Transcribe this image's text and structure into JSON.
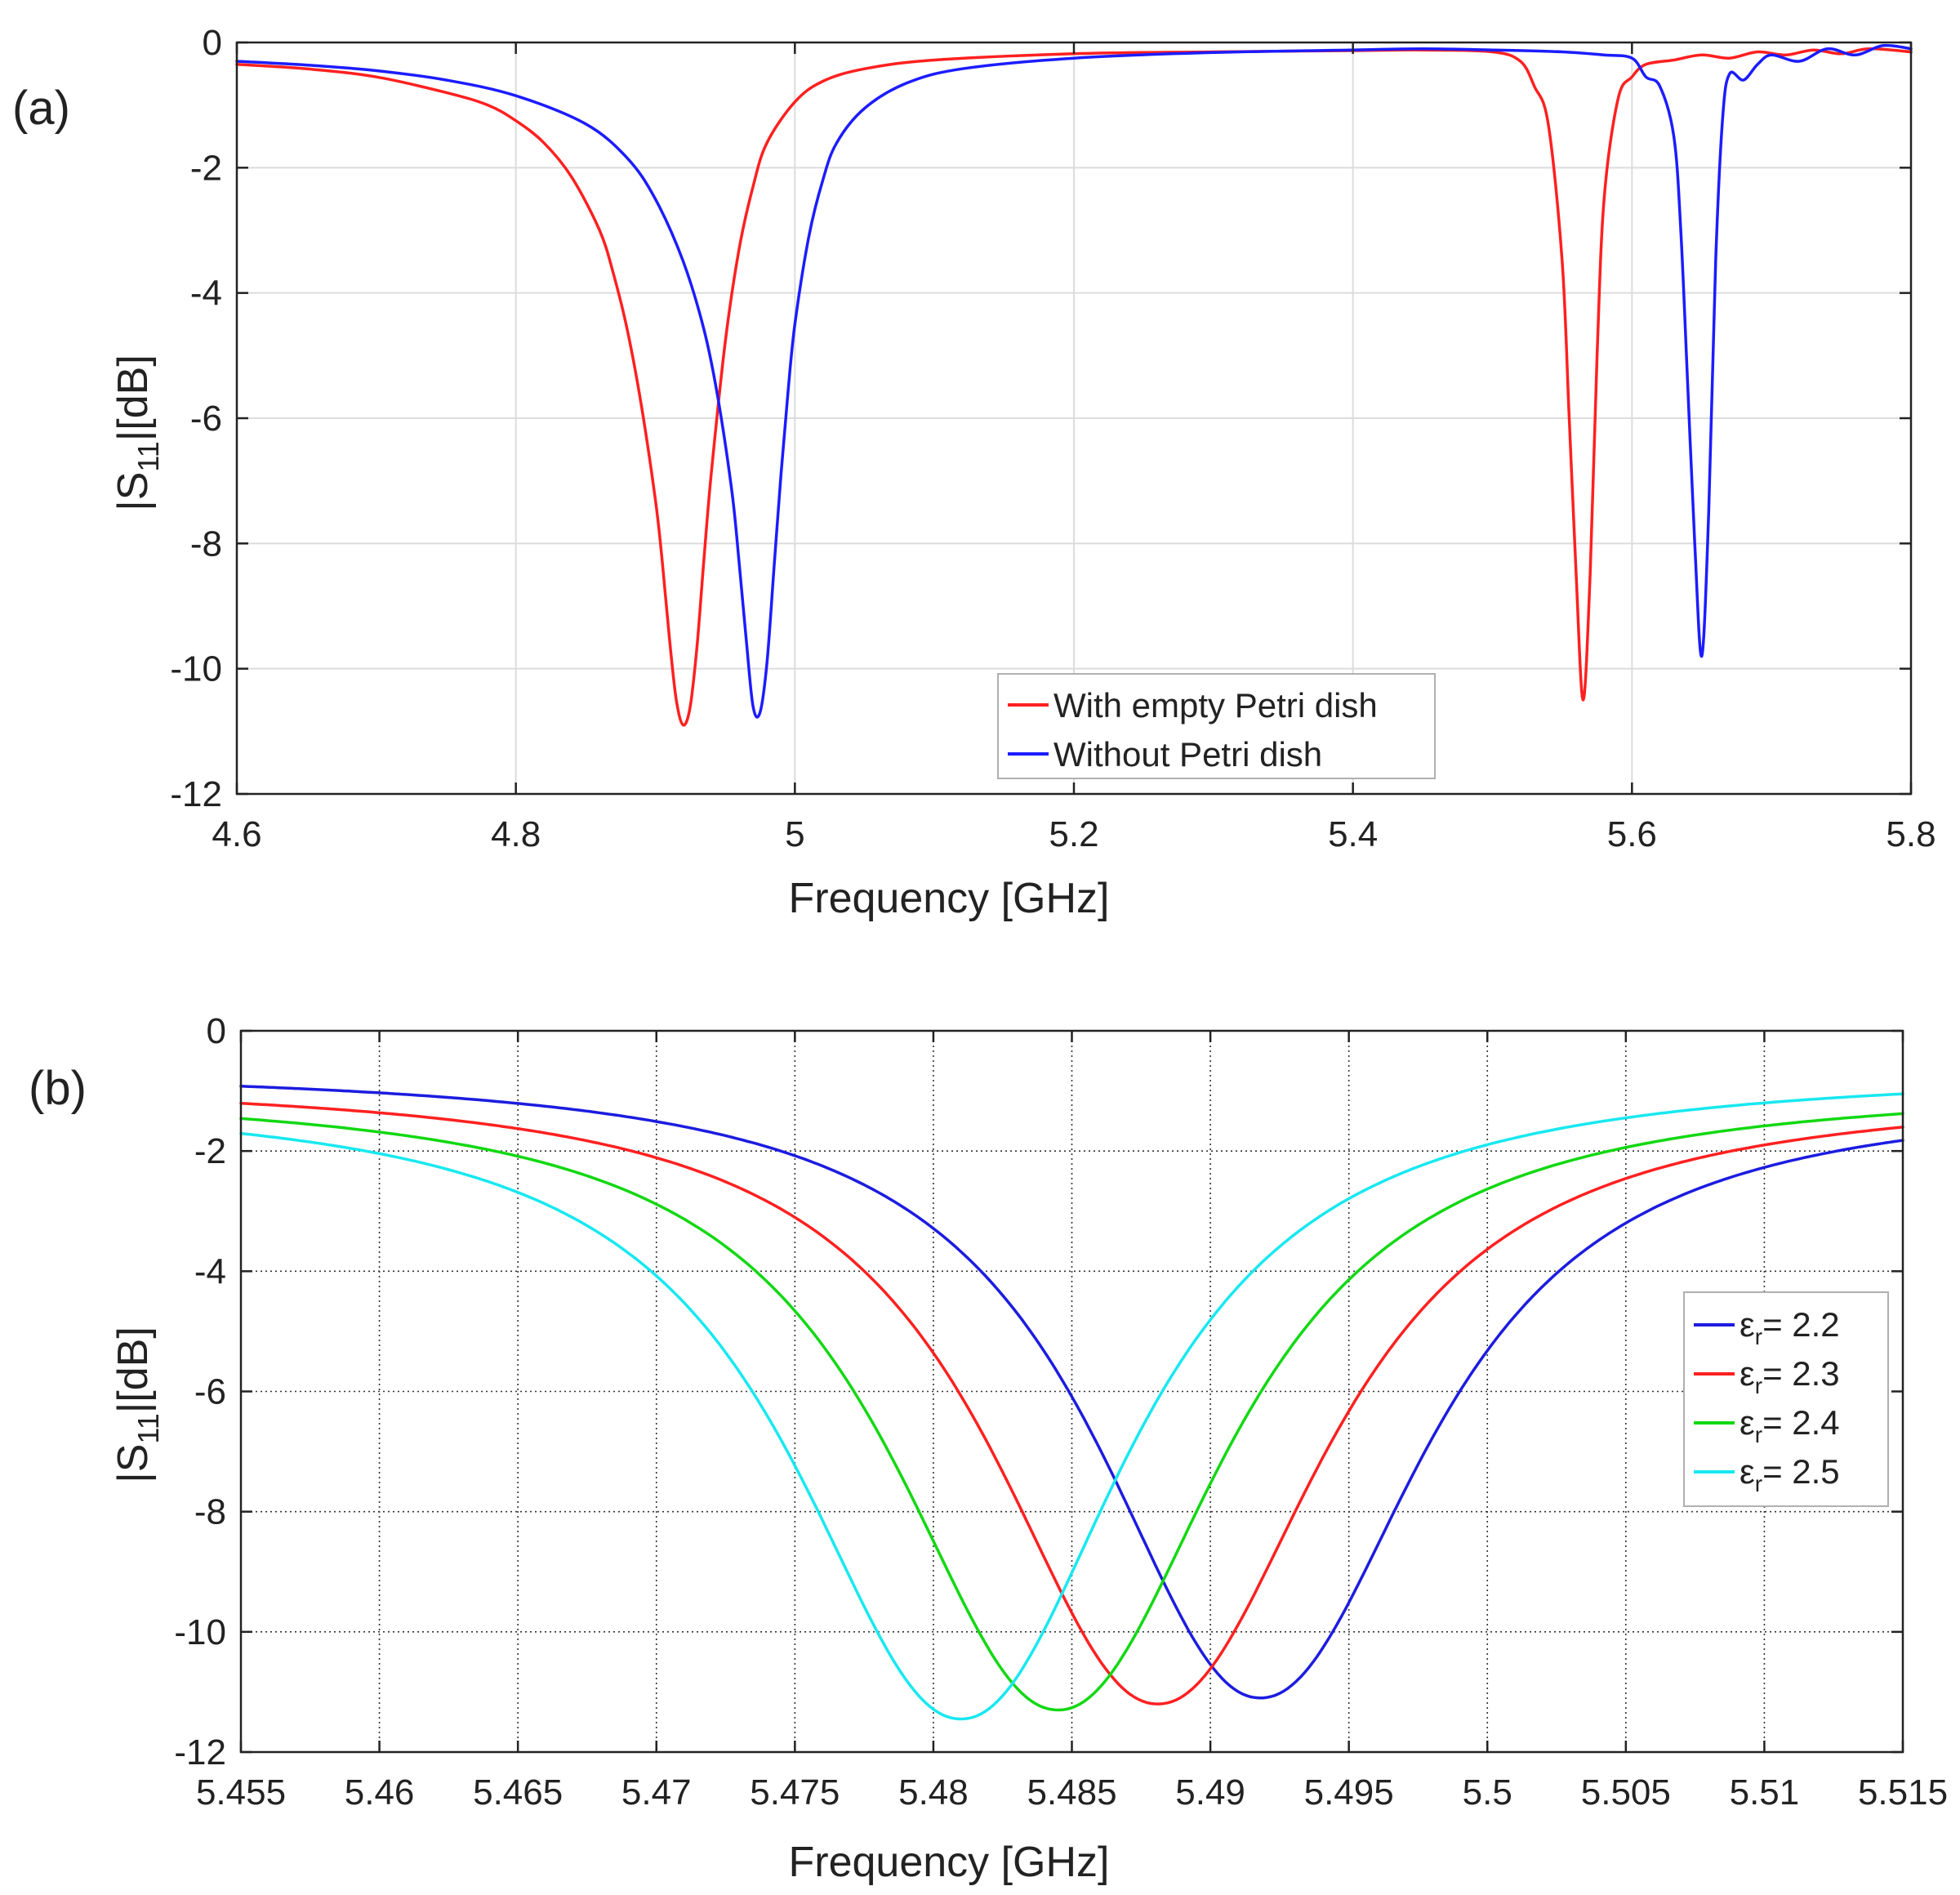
{
  "charts": [
    {
      "id": "a",
      "panel_label": "(a)",
      "ylabel_prefix": "|S",
      "ylabel_sub": "11",
      "ylabel_suffix": "|[dB]",
      "xlabel": "Frequency [GHz]"
    },
    {
      "id": "b",
      "panel_label": "(b)",
      "ylabel_prefix": "|S",
      "ylabel_sub": "11",
      "ylabel_suffix": "|[dB]",
      "xlabel": "Frequency [GHz]"
    }
  ],
  "chart_data": [
    {
      "type": "line",
      "title": "",
      "panel_label": "(a)",
      "xlabel": "Frequency [GHz]",
      "ylabel": "|S11|[dB]",
      "xlim": [
        4.6,
        5.8
      ],
      "ylim": [
        -12,
        0
      ],
      "xticks": [
        4.6,
        4.8,
        5,
        5.2,
        5.4,
        5.6,
        5.8
      ],
      "xtick_labels": [
        "4.6",
        "4.8",
        "5",
        "5.2",
        "5.4",
        "5.6",
        "5.8"
      ],
      "yticks": [
        0,
        -2,
        -4,
        -6,
        -8,
        -10,
        -12
      ],
      "ytick_labels": [
        "0",
        "-2",
        "-4",
        "-6",
        "-8",
        "-10",
        "-12"
      ],
      "grid": true,
      "legend_position": "bottom-center",
      "series": [
        {
          "name": "With empty Petri dish",
          "color": "#ff2020",
          "x": [
            4.6,
            4.65,
            4.7,
            4.75,
            4.78,
            4.8,
            4.82,
            4.84,
            4.86,
            4.87,
            4.88,
            4.89,
            4.9,
            4.905,
            4.91,
            4.915,
            4.92,
            4.925,
            4.93,
            4.935,
            4.94,
            4.95,
            4.96,
            4.97,
            4.98,
            5.0,
            5.02,
            5.05,
            5.1,
            5.2,
            5.3,
            5.4,
            5.45,
            5.5,
            5.52,
            5.53,
            5.54,
            5.55,
            5.555,
            5.56,
            5.565,
            5.57,
            5.575,
            5.58,
            5.59,
            5.6,
            5.61,
            5.63,
            5.65,
            5.67,
            5.69,
            5.71,
            5.73,
            5.75,
            5.77,
            5.8
          ],
          "y": [
            -0.35,
            -0.42,
            -0.55,
            -0.8,
            -1.0,
            -1.25,
            -1.6,
            -2.15,
            -3.0,
            -3.7,
            -4.6,
            -5.8,
            -7.3,
            -8.3,
            -9.5,
            -10.5,
            -10.9,
            -10.6,
            -9.6,
            -8.2,
            -6.9,
            -4.8,
            -3.3,
            -2.3,
            -1.6,
            -0.95,
            -0.62,
            -0.42,
            -0.28,
            -0.18,
            -0.15,
            -0.13,
            -0.12,
            -0.15,
            -0.3,
            -0.7,
            -1.3,
            -3.5,
            -6.0,
            -8.5,
            -10.5,
            -8.5,
            -5.0,
            -2.5,
            -0.9,
            -0.55,
            -0.35,
            -0.28,
            -0.2,
            -0.25,
            -0.15,
            -0.2,
            -0.12,
            -0.18,
            -0.1,
            -0.15
          ]
        },
        {
          "name": "Without Petri dish",
          "color": "#1c1cff",
          "x": [
            4.6,
            4.65,
            4.7,
            4.75,
            4.8,
            4.85,
            4.88,
            4.9,
            4.92,
            4.935,
            4.945,
            4.955,
            4.96,
            4.965,
            4.97,
            4.975,
            4.98,
            4.985,
            4.99,
            4.995,
            5.0,
            5.01,
            5.02,
            5.03,
            5.05,
            5.08,
            5.12,
            5.2,
            5.3,
            5.4,
            5.45,
            5.5,
            5.55,
            5.58,
            5.6,
            5.61,
            5.62,
            5.63,
            5.635,
            5.64,
            5.645,
            5.65,
            5.655,
            5.66,
            5.665,
            5.67,
            5.68,
            5.69,
            5.7,
            5.72,
            5.74,
            5.76,
            5.78,
            5.8
          ],
          "y": [
            -0.3,
            -0.36,
            -0.45,
            -0.6,
            -0.85,
            -1.3,
            -1.85,
            -2.5,
            -3.5,
            -4.6,
            -5.7,
            -7.2,
            -8.3,
            -9.5,
            -10.6,
            -10.7,
            -9.9,
            -8.4,
            -6.9,
            -5.6,
            -4.5,
            -3.1,
            -2.2,
            -1.6,
            -1.05,
            -0.65,
            -0.42,
            -0.25,
            -0.16,
            -0.12,
            -0.1,
            -0.12,
            -0.15,
            -0.2,
            -0.25,
            -0.55,
            -0.7,
            -1.5,
            -3.0,
            -5.5,
            -8.0,
            -9.8,
            -7.5,
            -3.5,
            -1.2,
            -0.5,
            -0.6,
            -0.35,
            -0.2,
            -0.3,
            -0.1,
            -0.2,
            -0.05,
            -0.1
          ]
        }
      ]
    },
    {
      "type": "line",
      "title": "",
      "panel_label": "(b)",
      "xlabel": "Frequency [GHz]",
      "ylabel": "|S11|[dB]",
      "xlim": [
        5.455,
        5.515
      ],
      "ylim": [
        -12,
        0
      ],
      "xticks": [
        5.455,
        5.46,
        5.465,
        5.47,
        5.475,
        5.48,
        5.485,
        5.49,
        5.495,
        5.5,
        5.505,
        5.51,
        5.515
      ],
      "xtick_labels": [
        "5.455",
        "5.46",
        "5.465",
        "5.47",
        "5.475",
        "5.48",
        "5.485",
        "5.49",
        "5.495",
        "5.5",
        "5.505",
        "5.51",
        "5.515"
      ],
      "yticks": [
        0,
        -2,
        -4,
        -6,
        -8,
        -10,
        -12
      ],
      "ytick_labels": [
        "0",
        "-2",
        "-4",
        "-6",
        "-8",
        "-10",
        "-12"
      ],
      "grid": true,
      "legend_position": "right",
      "series": [
        {
          "name": "εr= 2.2",
          "label_symbol": "ε",
          "label_sub": "r",
          "label_value": "= 2.2",
          "color": "#1c1ce0",
          "model": {
            "f0": 5.4918,
            "depth": -11.1,
            "gamma": 0.0071,
            "base_left": -0.6,
            "base_right": -1.05,
            "power": 2.1
          }
        },
        {
          "name": "εr= 2.3",
          "label_symbol": "ε",
          "label_sub": "r",
          "label_value": "= 2.3",
          "color": "#ff2020",
          "model": {
            "f0": 5.4881,
            "depth": -11.2,
            "gamma": 0.0072,
            "base_left": -0.8,
            "base_right": -1.0,
            "power": 2.1
          }
        },
        {
          "name": "εr= 2.4",
          "label_symbol": "ε",
          "label_sub": "r",
          "label_value": "= 2.4",
          "color": "#12d812",
          "model": {
            "f0": 5.4845,
            "depth": -11.3,
            "gamma": 0.0072,
            "base_left": -0.95,
            "base_right": -0.9,
            "power": 2.1
          }
        },
        {
          "name": "εr= 2.5",
          "label_symbol": "ε",
          "label_sub": "r",
          "label_value": "= 2.5",
          "color": "#18e8f0",
          "model": {
            "f0": 5.481,
            "depth": -11.45,
            "gamma": 0.0072,
            "base_left": -1.05,
            "base_right": -0.65,
            "power": 2.1
          }
        }
      ]
    }
  ]
}
